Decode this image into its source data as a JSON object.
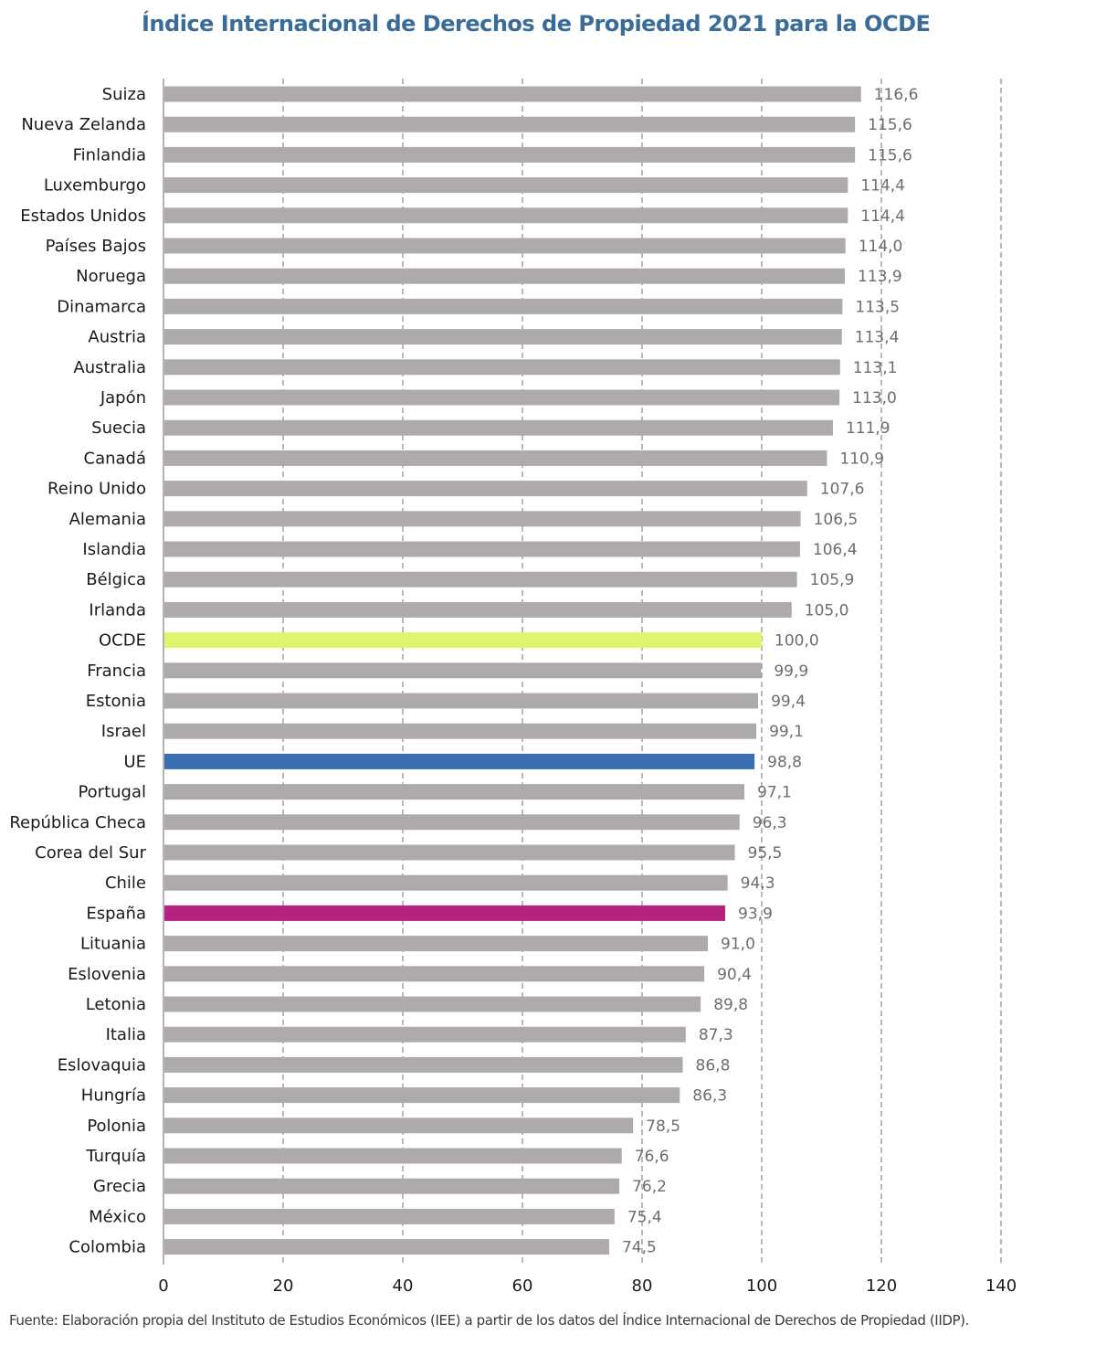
{
  "chart_data": {
    "type": "bar",
    "orientation": "horizontal",
    "title": "Índice Internacional de Derechos de Propiedad 2021 para la OCDE",
    "source": "Fuente: Elaboración propia del Instituto de Estudios Económicos (IEE) a partir de los datos del Índice Internacional de Derechos de Propiedad (IIDP).",
    "categories": [
      "Suiza",
      "Nueva Zelanda",
      "Finlandia",
      "Luxemburgo",
      "Estados Unidos",
      "Países Bajos",
      "Noruega",
      "Dinamarca",
      "Austria",
      "Australia",
      "Japón",
      "Suecia",
      "Canadá",
      "Reino Unido",
      "Alemania",
      "Islandia",
      "Bélgica",
      "Irlanda",
      "OCDE",
      "Francia",
      "Estonia",
      "Israel",
      "UE",
      "Portugal",
      "República Checa",
      "Corea del Sur",
      "Chile",
      "España",
      "Lituania",
      "Eslovenia",
      "Letonia",
      "Italia",
      "Eslovaquia",
      "Hungría",
      "Polonia",
      "Turquía",
      "Grecia",
      "México",
      "Colombia"
    ],
    "values": [
      116.6,
      115.6,
      115.6,
      114.4,
      114.4,
      114.0,
      113.9,
      113.5,
      113.4,
      113.1,
      113.0,
      111.9,
      110.9,
      107.6,
      106.5,
      106.4,
      105.9,
      105.0,
      100.0,
      99.9,
      99.4,
      99.1,
      98.8,
      97.1,
      96.3,
      95.5,
      94.3,
      93.9,
      91.0,
      90.4,
      89.8,
      87.3,
      86.8,
      86.3,
      78.5,
      76.6,
      76.2,
      75.4,
      74.5
    ],
    "value_labels": [
      "116,6",
      "115,6",
      "115,6",
      "114,4",
      "114,4",
      "114,0",
      "113,9",
      "113,5",
      "113,4",
      "113,1",
      "113,0",
      "111,9",
      "110,9",
      "107,6",
      "106,5",
      "106,4",
      "105,9",
      "105,0",
      "100,0",
      "99,9",
      "99,4",
      "99,1",
      "98,8",
      "97,1",
      "96,3",
      "95,5",
      "94,3",
      "93,9",
      "91,0",
      "90,4",
      "89,8",
      "87,3",
      "86,8",
      "86,3",
      "78,5",
      "76,6",
      "76,2",
      "75,4",
      "74,5"
    ],
    "xlim": [
      0,
      140
    ],
    "xticks": [
      0,
      20,
      40,
      60,
      80,
      100,
      120,
      140
    ],
    "xtick_labels": [
      "0",
      "20",
      "40",
      "60",
      "80",
      "100",
      "120",
      "140"
    ],
    "xlabel": "",
    "ylabel": "",
    "grid": "vertical dashed",
    "legend": "none",
    "colors": {
      "default": "#aeaaab",
      "highlight": {
        "OCDE": "#dff56e",
        "UE": "#3c6fb2",
        "España": "#b5227f"
      },
      "grid": "#8a8a8a",
      "value_label": "#6d6d6d"
    }
  }
}
